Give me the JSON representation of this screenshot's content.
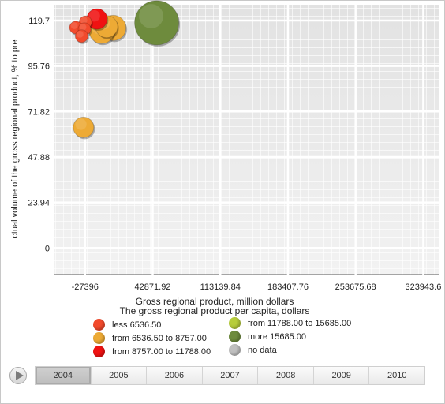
{
  "chart_data": {
    "type": "bubble",
    "ylabel": "ctual volume of the gross regional product, % to pre",
    "xlabel": "Gross regional product, million dollars",
    "size_label": "The gross regional product per capita, dollars",
    "x_ticks": [
      "-27396",
      "42871.92",
      "113139.84",
      "183407.76",
      "253675.68",
      "323943.6"
    ],
    "y_ticks": [
      "119.7",
      "95.76",
      "71.82",
      "47.88",
      "23.94",
      "0"
    ],
    "xlim": [
      -60000,
      340000
    ],
    "ylim": [
      -14,
      128
    ],
    "grid": true,
    "legend": [
      {
        "label": "less 6536.50",
        "color": "#f24a2c"
      },
      {
        "label": "from 6536.50 to 8757.00",
        "color": "#edaa35"
      },
      {
        "label": "from 8757.00 to 11788.00",
        "color": "#f01212"
      },
      {
        "label": "from 11788.00 to 15685.00",
        "color": "#b7cd3b"
      },
      {
        "label": "more 15685.00",
        "color": "#6e8b3d"
      },
      {
        "label": "no data",
        "color": "#c0c0c0"
      }
    ],
    "points": [
      {
        "x": -15000,
        "y": 120.5,
        "size": 13,
        "color": "#f01212"
      },
      {
        "x": 2000,
        "y": 115.8,
        "size": 16,
        "color": "#edaa35"
      },
      {
        "x": -10000,
        "y": 114.2,
        "size": 16,
        "color": "#edaa35"
      },
      {
        "x": -5000,
        "y": 116.5,
        "size": 14,
        "color": "#edaa35"
      },
      {
        "x": -27000,
        "y": 118.8,
        "size": 8,
        "color": "#f24a2c"
      },
      {
        "x": -37000,
        "y": 116.0,
        "size": 8,
        "color": "#f24a2c"
      },
      {
        "x": -28000,
        "y": 115.2,
        "size": 8,
        "color": "#f24a2c"
      },
      {
        "x": -31000,
        "y": 111.5,
        "size": 8,
        "color": "#f24a2c"
      },
      {
        "x": 47000,
        "y": 118.5,
        "size": 28,
        "color": "#6e8b3d"
      },
      {
        "x": -29000,
        "y": 63.5,
        "size": 13,
        "color": "#edaa35"
      }
    ]
  },
  "timeline": {
    "years": [
      "2004",
      "2005",
      "2006",
      "2007",
      "2008",
      "2009",
      "2010"
    ],
    "selected": "2004"
  }
}
